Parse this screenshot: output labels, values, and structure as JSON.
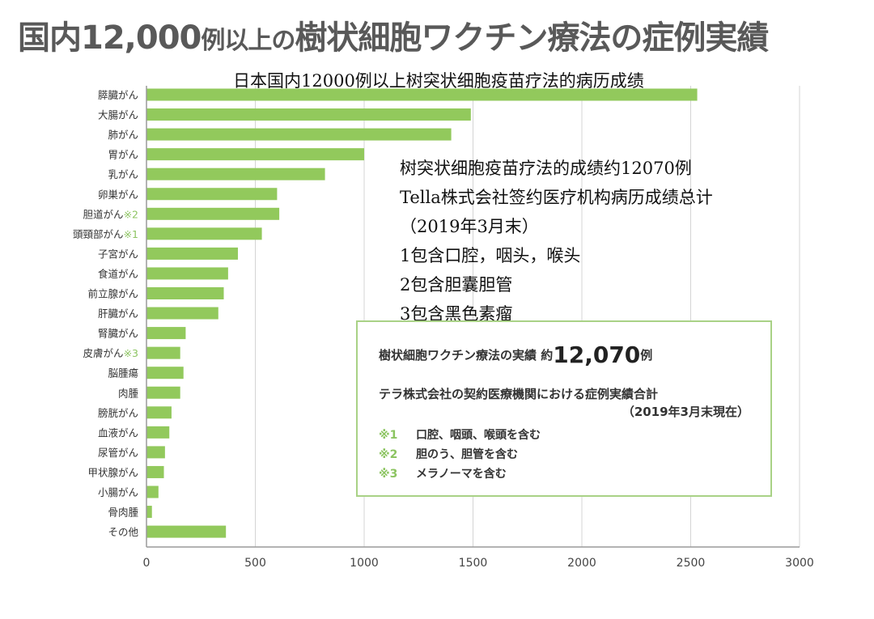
{
  "title": {
    "prefix": "国内12,000",
    "small": "例以上の",
    "main": "樹状細胞ワクチン療法の症例実績"
  },
  "subtitle_cn": "日本国内12000例以上树突状细胞疫苗疗法的病历成绩",
  "cn_notes": [
    "树突状细胞疫苗疗法的成绩约12070例",
    "Tella株式会社签约医疗机构病历成绩总计",
    "（2019年3月末）",
    "1包含口腔，咽头，喉头",
    "2包含胆囊胆管",
    "3包含黑色素瘤"
  ],
  "jp_box": {
    "head": "樹状細胞ワクチン療法の実績 約",
    "head_num": "12,070",
    "head_unit": "例",
    "sub": "テラ株式会社の契約医療機関における症例実績合計",
    "date": "（2019年3月末現在）",
    "notes": [
      {
        "mark": "※1",
        "text": "口腔、咽頭、喉頭を含む"
      },
      {
        "mark": "※2",
        "text": "胆のう、胆管を含む"
      },
      {
        "mark": "※3",
        "text": "メラノーマを含む"
      }
    ]
  },
  "colors": {
    "bar": "#92c95c",
    "grid": "#d4d4d4",
    "note_mark": "#8cc461",
    "box_border": "#a9d286"
  },
  "chart_data": {
    "type": "bar",
    "orientation": "horizontal",
    "categories": [
      {
        "label": "膵臓がん",
        "note": ""
      },
      {
        "label": "大腸がん",
        "note": ""
      },
      {
        "label": "肺がん",
        "note": ""
      },
      {
        "label": "胃がん",
        "note": ""
      },
      {
        "label": "乳がん",
        "note": ""
      },
      {
        "label": "卵巣がん",
        "note": ""
      },
      {
        "label": "胆道がん",
        "note": "※2"
      },
      {
        "label": "頭頸部がん",
        "note": "※1"
      },
      {
        "label": "子宮がん",
        "note": ""
      },
      {
        "label": "食道がん",
        "note": ""
      },
      {
        "label": "前立腺がん",
        "note": ""
      },
      {
        "label": "肝臓がん",
        "note": ""
      },
      {
        "label": "腎臓がん",
        "note": ""
      },
      {
        "label": "皮膚がん",
        "note": "※3"
      },
      {
        "label": "脳腫瘍",
        "note": ""
      },
      {
        "label": "肉腫",
        "note": ""
      },
      {
        "label": "膀胱がん",
        "note": ""
      },
      {
        "label": "血液がん",
        "note": ""
      },
      {
        "label": "尿管がん",
        "note": ""
      },
      {
        "label": "甲状腺がん",
        "note": ""
      },
      {
        "label": "小腸がん",
        "note": ""
      },
      {
        "label": "骨肉腫",
        "note": ""
      },
      {
        "label": "その他",
        "note": ""
      }
    ],
    "values": [
      2530,
      1490,
      1400,
      1000,
      820,
      600,
      610,
      530,
      420,
      375,
      355,
      330,
      180,
      155,
      170,
      155,
      115,
      105,
      85,
      80,
      55,
      25,
      365
    ],
    "xlim": [
      0,
      3000
    ],
    "xticks": [
      0,
      500,
      1000,
      1500,
      2000,
      2500,
      3000
    ],
    "grid": true,
    "xlabel": "",
    "ylabel": ""
  }
}
